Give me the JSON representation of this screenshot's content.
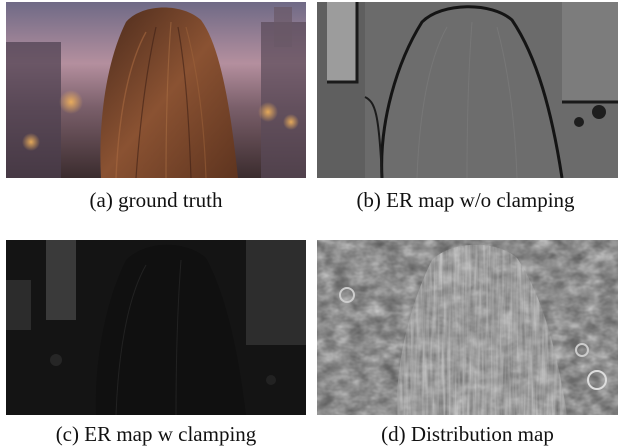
{
  "figure": {
    "panels": [
      {
        "id": "a",
        "caption": "(a) ground truth"
      },
      {
        "id": "b",
        "caption": "(b) ER map w/o clamping"
      },
      {
        "id": "c",
        "caption": "(c) ER map w clamping"
      },
      {
        "id": "d",
        "caption": "(d) Distribution map"
      }
    ]
  }
}
